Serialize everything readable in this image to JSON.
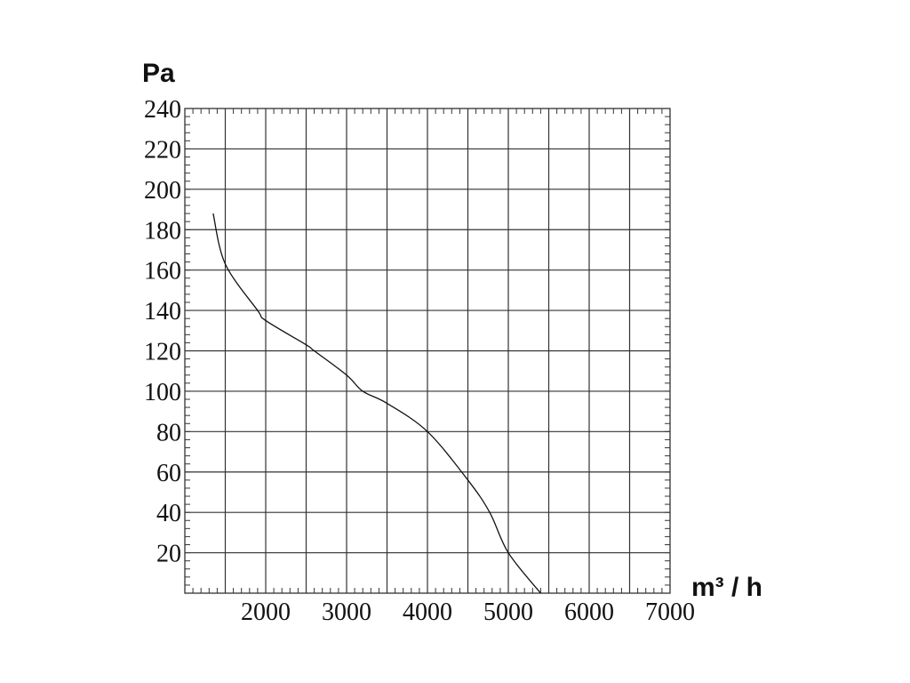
{
  "chart_data": {
    "type": "line",
    "ylabel": "Pa",
    "xlabel": "m³ / h",
    "xlim": [
      1000,
      7000
    ],
    "ylim": [
      0,
      240
    ],
    "x_major_step": 500,
    "x_minor_step": 100,
    "y_major_step": 20,
    "y_minor_step": 4,
    "grid": true,
    "x_tick_labels": [
      "2000",
      "3000",
      "4000",
      "5000",
      "6000",
      "7000"
    ],
    "y_tick_labels": [
      "20",
      "40",
      "60",
      "80",
      "100",
      "120",
      "140",
      "160",
      "180",
      "200",
      "220",
      "240"
    ],
    "series": [
      {
        "color": "#111111",
        "x": [
          1350,
          1500,
          1900,
          2000,
          2500,
          2600,
          3000,
          3200,
          3500,
          4000,
          4500,
          4770,
          5000,
          5400
        ],
        "y": [
          188,
          163,
          140,
          135,
          123,
          120,
          108,
          100,
          94,
          80,
          56,
          40,
          20,
          0
        ]
      }
    ]
  }
}
